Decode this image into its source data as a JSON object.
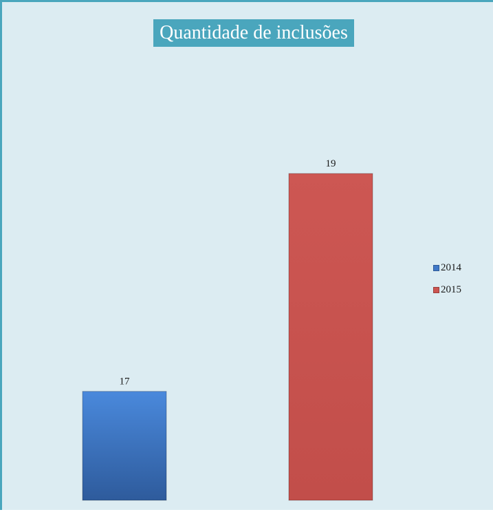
{
  "chart_data": {
    "type": "bar",
    "title": "Quantidade de inclusões",
    "categories": [
      "2014",
      "2015"
    ],
    "series": [
      {
        "name": "2014",
        "value": 17,
        "color": "#3f78c8"
      },
      {
        "name": "2015",
        "value": 19,
        "color": "#cc5551"
      }
    ],
    "ylim": [
      16,
      19.5
    ],
    "grid": false,
    "legend_position": "right"
  },
  "colors": {
    "background": "#dcecf2",
    "border": "#4aa6bd",
    "title_background": "#4aa6bd"
  }
}
